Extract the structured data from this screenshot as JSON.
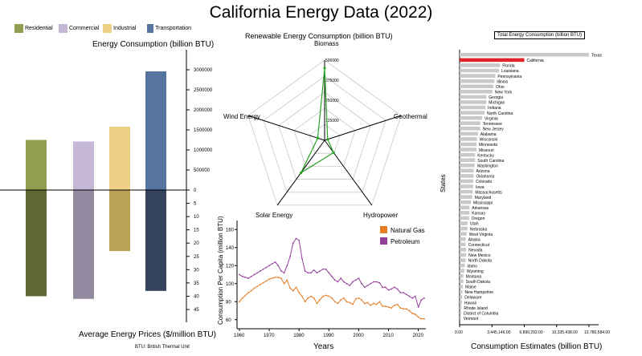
{
  "title": "California Energy Data (2022)",
  "footnote": "BTU: British Thermal Unit",
  "colors": {
    "residential": "#8f9e50",
    "commercial": "#c5b8d6",
    "industrial": "#ecd084",
    "transportation": "#5575a0",
    "residential_dark": "#5d6835",
    "commercial_dark": "#948aa1",
    "industrial_dark": "#bba157",
    "transportation_dark": "#34445e",
    "highlight": "#e0242a",
    "bar_grey": "#c9c9c9",
    "natural_gas": "#e57d25",
    "petroleum": "#93409a",
    "radar": "#29a329"
  },
  "legend": [
    "Residential",
    "Commercial",
    "Industrial",
    "Transportation"
  ],
  "chart_data": [
    {
      "type": "bar",
      "title": "Energy Consumption (billion BTU)",
      "subtitle_bottom": "Average Energy Prices ($/million BTU)",
      "categories": [
        "Residential",
        "Commercial",
        "Industrial",
        "Transportation"
      ],
      "series": [
        {
          "name": "Energy Consumption (billion BTU)",
          "values": [
            1250000,
            1210000,
            1580000,
            2960000
          ]
        },
        {
          "name": "Average Energy Prices ($/million BTU)",
          "values": [
            40,
            41,
            23,
            38
          ]
        }
      ],
      "top_ticks": [
        "3000000",
        "2500000",
        "2000000",
        "1500000",
        "1000000",
        "500000",
        "0"
      ],
      "bottom_ticks": [
        "5",
        "10",
        "15",
        "20",
        "25",
        "30",
        "35",
        "40",
        "45"
      ],
      "ylim_top": [
        0,
        3000000
      ],
      "ylim_bottom": [
        0,
        45
      ]
    },
    {
      "type": "radar",
      "title": "Renewable Energy Consumption (billion BTU)",
      "axes": [
        "Biomass",
        "Geothermal",
        "Hydropower",
        "Solar Energy",
        "Wind Energy"
      ],
      "values": [
        450000,
        20000,
        95000,
        250000,
        45000
      ],
      "rlim": [
        0,
        500000
      ],
      "ring_labels": [
        "500000",
        "375000",
        "250000",
        "125000"
      ]
    },
    {
      "type": "line",
      "xlabel": "Years",
      "ylabel": "Consumption Per Capita (million BTU)",
      "x_ticks": [
        "1960",
        "1970",
        "1980",
        "1990",
        "2000",
        "2010",
        "2020"
      ],
      "y_ticks": [
        "60",
        "80",
        "100",
        "120",
        "140",
        "160"
      ],
      "xlim": [
        1960,
        2022
      ],
      "ylim": [
        50,
        170
      ],
      "series": [
        {
          "name": "Natural Gas",
          "values": [
            80,
            84,
            87,
            90,
            92,
            95,
            97,
            99,
            101,
            103,
            105,
            106,
            107,
            107,
            106,
            100,
            104,
            95,
            92,
            96,
            90,
            86,
            80,
            84,
            86,
            84,
            78,
            82,
            86,
            87,
            86,
            84,
            80,
            78,
            82,
            84,
            80,
            79,
            77,
            83,
            84,
            82,
            78,
            79,
            76,
            78,
            77,
            80,
            75,
            75,
            74,
            73,
            76,
            77,
            73,
            72,
            72,
            70,
            67,
            66,
            63,
            61,
            61
          ]
        },
        {
          "name": "Petroleum",
          "values": [
            110,
            108,
            107,
            106,
            108,
            110,
            112,
            114,
            116,
            118,
            120,
            122,
            124,
            120,
            114,
            112,
            120,
            130,
            145,
            150,
            148,
            128,
            114,
            112,
            112,
            115,
            112,
            114,
            116,
            116,
            112,
            108,
            104,
            102,
            106,
            102,
            100,
            98,
            102,
            104,
            106,
            100,
            96,
            98,
            100,
            102,
            102,
            101,
            96,
            96,
            93,
            94,
            96,
            94,
            90,
            90,
            88,
            86,
            84,
            86,
            74,
            82,
            84
          ]
        }
      ]
    },
    {
      "type": "bar",
      "title": "Total Energy Consumption (billion BTU)",
      "xlabel": "Consumption Estimates (billion BTU)",
      "ylabel": "States",
      "highlight": "California",
      "x_ticks": [
        "0.00",
        "3,445,146.00",
        "6,890,292.00",
        "10,335,438.00",
        "13,780,584.00"
      ],
      "xlim": [
        0,
        13780584
      ],
      "categories": [
        "Texas",
        "California",
        "Florida",
        "Louisiana",
        "Pennsylvania",
        "Illinois",
        "Ohio",
        "New York",
        "Georgia",
        "Michigan",
        "Indiana",
        "North Carolina",
        "Virginia",
        "Tennessee",
        "New Jersey",
        "Alabama",
        "Wisconsin",
        "Minnesota",
        "Missouri",
        "Kentucky",
        "South Carolina",
        "Washington",
        "Arizona",
        "Oklahoma",
        "Colorado",
        "Iowa",
        "Massachusetts",
        "Maryland",
        "Mississippi",
        "Arkansas",
        "Kansas",
        "Oregon",
        "Utah",
        "Nebraska",
        "West Virginia",
        "Alaska",
        "Connecticut",
        "Nevada",
        "New Mexico",
        "North Dakota",
        "Idaho",
        "Wyoming",
        "Montana",
        "South Dakota",
        "Maine",
        "New Hampshire",
        "Delaware",
        "Hawaii",
        "Rhode Island",
        "District of Columbia",
        "Vermont"
      ],
      "values": [
        13780584,
        6890292,
        4300000,
        4200000,
        3800000,
        3700000,
        3600000,
        3500000,
        2850000,
        2850000,
        2750000,
        2650000,
        2400000,
        2200000,
        2200000,
        1950000,
        1850000,
        1800000,
        1800000,
        1650000,
        1650000,
        1600000,
        1500000,
        1500000,
        1450000,
        1450000,
        1400000,
        1350000,
        1200000,
        1050000,
        1050000,
        1000000,
        850000,
        850000,
        750000,
        650000,
        650000,
        700000,
        700000,
        650000,
        550000,
        500000,
        400000,
        400000,
        350000,
        300000,
        280000,
        250000,
        200000,
        180000,
        150000
      ]
    }
  ]
}
